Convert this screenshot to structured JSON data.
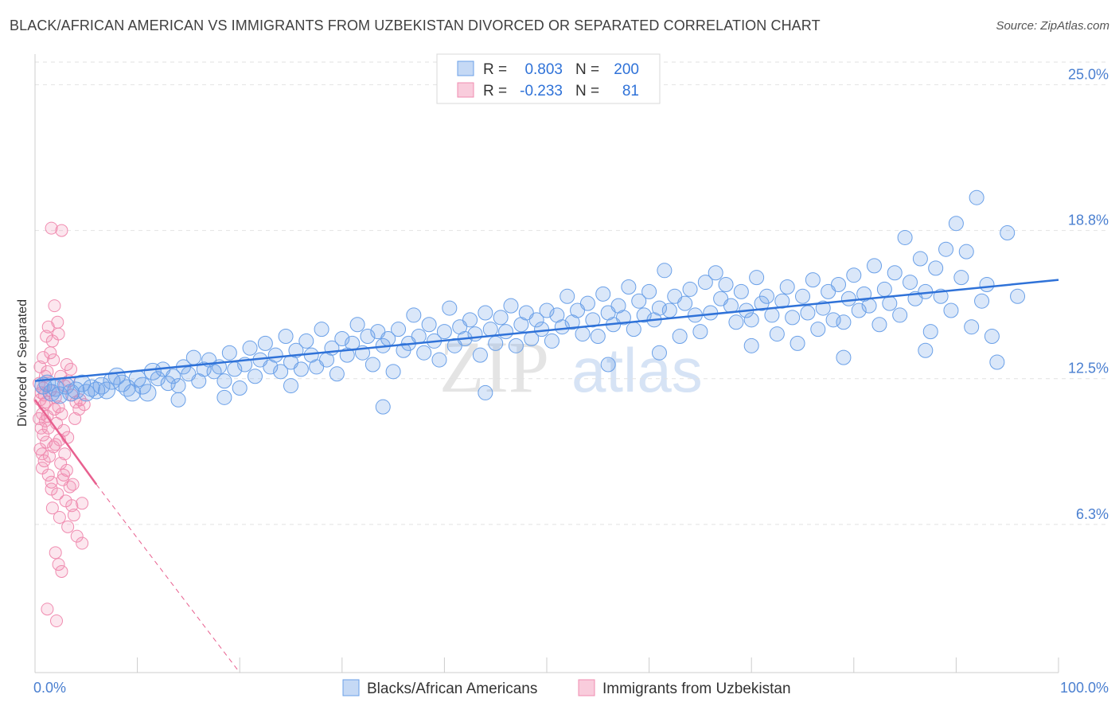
{
  "title": "BLACK/AFRICAN AMERICAN VS IMMIGRANTS FROM UZBEKISTAN DIVORCED OR SEPARATED CORRELATION CHART",
  "source": "Source: ZipAtlas.com",
  "watermark": {
    "zip": "ZIP",
    "atlas": "atlas"
  },
  "colors": {
    "blue": "#6aa0e8",
    "blue_line": "#2f72d8",
    "pink": "#f08cb0",
    "pink_line": "#e8608f",
    "tick": "#4a7fd0"
  },
  "stats_legend": [
    {
      "r_label": "R =",
      "r_value": "0.803",
      "n_label": "N =",
      "n_value": "200"
    },
    {
      "r_label": "R =",
      "r_value": "-0.233",
      "n_label": "N =",
      "n_value": "81"
    }
  ],
  "chart_data": {
    "type": "scatter",
    "title": "BLACK/AFRICAN AMERICAN VS IMMIGRANTS FROM UZBEKISTAN DIVORCED OR SEPARATED CORRELATION CHART",
    "xlabel": "",
    "ylabel": "Divorced or Separated",
    "xlim": [
      0,
      100
    ],
    "ylim": [
      0,
      26.3
    ],
    "x_ticks": [
      {
        "value": 0,
        "label": "0.0%"
      },
      {
        "value": 100,
        "label": "100.0%"
      }
    ],
    "y_ticks": [
      {
        "value": 6.3,
        "label": "6.3%"
      },
      {
        "value": 12.5,
        "label": "12.5%"
      },
      {
        "value": 18.8,
        "label": "18.8%"
      },
      {
        "value": 25.0,
        "label": "25.0%"
      }
    ],
    "grid": true,
    "legend_position": "bottom-center",
    "series": [
      {
        "name": "Blacks/African Americans",
        "color": "#6aa0e8",
        "trend": {
          "x": [
            0,
            100
          ],
          "y": [
            12.4,
            16.7
          ]
        },
        "points": [
          [
            0.8,
            12.2
          ],
          [
            1.2,
            12.3
          ],
          [
            1.6,
            11.9
          ],
          [
            2.0,
            12.1
          ],
          [
            2.4,
            11.8
          ],
          [
            3.0,
            12.2
          ],
          [
            3.5,
            11.9
          ],
          [
            4.0,
            12.0
          ],
          [
            4.6,
            12.3
          ],
          [
            5.0,
            11.9
          ],
          [
            5.5,
            12.1
          ],
          [
            6.0,
            12.0
          ],
          [
            6.5,
            12.2
          ],
          [
            7.0,
            12.0
          ],
          [
            7.5,
            12.4
          ],
          [
            8.0,
            12.6
          ],
          [
            8.5,
            12.3
          ],
          [
            9.0,
            12.1
          ],
          [
            9.5,
            11.9
          ],
          [
            10.0,
            12.5
          ],
          [
            10.5,
            12.2
          ],
          [
            11.0,
            11.9
          ],
          [
            11.5,
            12.8
          ],
          [
            12.0,
            12.5
          ],
          [
            12.5,
            12.9
          ],
          [
            13.0,
            12.3
          ],
          [
            13.5,
            12.6
          ],
          [
            14.0,
            12.2
          ],
          [
            14.5,
            13.0
          ],
          [
            15.0,
            12.7
          ],
          [
            15.5,
            13.4
          ],
          [
            16.0,
            12.4
          ],
          [
            16.5,
            12.9
          ],
          [
            17.0,
            13.3
          ],
          [
            17.5,
            12.8
          ],
          [
            18.0,
            13.0
          ],
          [
            18.5,
            12.4
          ],
          [
            19.0,
            13.6
          ],
          [
            19.5,
            12.9
          ],
          [
            20.0,
            12.1
          ],
          [
            20.5,
            13.1
          ],
          [
            21.0,
            13.8
          ],
          [
            21.5,
            12.6
          ],
          [
            22.0,
            13.3
          ],
          [
            22.5,
            14.0
          ],
          [
            23.0,
            13.0
          ],
          [
            23.5,
            13.5
          ],
          [
            24.0,
            12.8
          ],
          [
            24.5,
            14.3
          ],
          [
            25.0,
            13.2
          ],
          [
            25.5,
            13.7
          ],
          [
            26.0,
            12.9
          ],
          [
            26.5,
            14.1
          ],
          [
            27.0,
            13.5
          ],
          [
            27.5,
            13.0
          ],
          [
            28.0,
            14.6
          ],
          [
            28.5,
            13.3
          ],
          [
            29.0,
            13.8
          ],
          [
            29.5,
            12.7
          ],
          [
            30.0,
            14.2
          ],
          [
            30.5,
            13.5
          ],
          [
            31.0,
            14.0
          ],
          [
            31.5,
            14.8
          ],
          [
            32.0,
            13.6
          ],
          [
            32.5,
            14.3
          ],
          [
            33.0,
            13.1
          ],
          [
            33.5,
            14.5
          ],
          [
            34.0,
            13.9
          ],
          [
            34.5,
            14.2
          ],
          [
            35.0,
            12.8
          ],
          [
            35.5,
            14.6
          ],
          [
            36.0,
            13.7
          ],
          [
            36.5,
            14.0
          ],
          [
            37.0,
            15.2
          ],
          [
            37.5,
            14.3
          ],
          [
            38.0,
            13.6
          ],
          [
            38.5,
            14.8
          ],
          [
            39.0,
            14.1
          ],
          [
            39.5,
            13.3
          ],
          [
            40.0,
            14.5
          ],
          [
            40.5,
            15.5
          ],
          [
            41.0,
            13.9
          ],
          [
            41.5,
            14.7
          ],
          [
            42.0,
            14.2
          ],
          [
            42.5,
            15.0
          ],
          [
            43.0,
            14.4
          ],
          [
            43.5,
            13.5
          ],
          [
            44.0,
            15.3
          ],
          [
            44.5,
            14.6
          ],
          [
            45.0,
            14.0
          ],
          [
            45.5,
            15.1
          ],
          [
            46.0,
            14.5
          ],
          [
            46.5,
            15.6
          ],
          [
            47.0,
            13.9
          ],
          [
            47.5,
            14.8
          ],
          [
            48.0,
            15.3
          ],
          [
            48.5,
            14.2
          ],
          [
            49.0,
            15.0
          ],
          [
            49.5,
            14.6
          ],
          [
            50.0,
            15.4
          ],
          [
            50.5,
            14.1
          ],
          [
            51.0,
            15.2
          ],
          [
            51.5,
            14.7
          ],
          [
            52.0,
            16.0
          ],
          [
            52.5,
            14.9
          ],
          [
            53.0,
            15.4
          ],
          [
            53.5,
            14.4
          ],
          [
            54.0,
            15.7
          ],
          [
            54.5,
            15.0
          ],
          [
            55.0,
            14.3
          ],
          [
            55.5,
            16.1
          ],
          [
            56.0,
            15.3
          ],
          [
            56.5,
            14.8
          ],
          [
            57.0,
            15.6
          ],
          [
            57.5,
            15.1
          ],
          [
            58.0,
            16.4
          ],
          [
            58.5,
            14.6
          ],
          [
            59.0,
            15.8
          ],
          [
            59.5,
            15.2
          ],
          [
            60.0,
            16.2
          ],
          [
            60.5,
            15.0
          ],
          [
            61.0,
            15.5
          ],
          [
            61.5,
            17.1
          ],
          [
            62.0,
            15.4
          ],
          [
            62.5,
            16.0
          ],
          [
            63.0,
            14.3
          ],
          [
            63.5,
            15.7
          ],
          [
            64.0,
            16.3
          ],
          [
            64.5,
            15.2
          ],
          [
            65.0,
            14.5
          ],
          [
            65.5,
            16.6
          ],
          [
            66.0,
            15.3
          ],
          [
            66.5,
            17.0
          ],
          [
            67.0,
            15.9
          ],
          [
            67.5,
            16.5
          ],
          [
            68.0,
            15.6
          ],
          [
            68.5,
            14.9
          ],
          [
            69.0,
            16.2
          ],
          [
            69.5,
            15.4
          ],
          [
            70.0,
            15.0
          ],
          [
            70.5,
            16.8
          ],
          [
            71.0,
            15.7
          ],
          [
            71.5,
            16.0
          ],
          [
            72.0,
            15.2
          ],
          [
            72.5,
            14.4
          ],
          [
            73.0,
            15.8
          ],
          [
            73.5,
            16.4
          ],
          [
            74.0,
            15.1
          ],
          [
            74.5,
            14.0
          ],
          [
            75.0,
            16.0
          ],
          [
            75.5,
            15.3
          ],
          [
            76.0,
            16.7
          ],
          [
            76.5,
            14.6
          ],
          [
            77.0,
            15.5
          ],
          [
            77.5,
            16.2
          ],
          [
            78.0,
            15.0
          ],
          [
            78.5,
            16.5
          ],
          [
            79.0,
            14.9
          ],
          [
            79.5,
            15.9
          ],
          [
            80.0,
            16.9
          ],
          [
            80.5,
            15.4
          ],
          [
            81.0,
            16.1
          ],
          [
            81.5,
            15.6
          ],
          [
            82.0,
            17.3
          ],
          [
            82.5,
            14.8
          ],
          [
            83.0,
            16.3
          ],
          [
            83.5,
            15.7
          ],
          [
            84.0,
            17.0
          ],
          [
            84.5,
            15.2
          ],
          [
            85.0,
            18.5
          ],
          [
            85.5,
            16.6
          ],
          [
            86.0,
            15.9
          ],
          [
            86.5,
            17.6
          ],
          [
            87.0,
            16.2
          ],
          [
            87.5,
            14.5
          ],
          [
            88.0,
            17.2
          ],
          [
            88.5,
            16.0
          ],
          [
            89.0,
            18.0
          ],
          [
            89.5,
            15.4
          ],
          [
            90.0,
            19.1
          ],
          [
            90.5,
            16.8
          ],
          [
            91.0,
            17.9
          ],
          [
            91.5,
            14.7
          ],
          [
            92.0,
            20.2
          ],
          [
            92.5,
            15.8
          ],
          [
            93.0,
            16.5
          ],
          [
            93.5,
            14.3
          ],
          [
            94.0,
            13.2
          ],
          [
            95.0,
            18.7
          ],
          [
            96.0,
            16.0
          ],
          [
            34.0,
            11.3
          ],
          [
            18.5,
            11.7
          ],
          [
            14.0,
            11.6
          ],
          [
            25.0,
            12.2
          ],
          [
            44.0,
            11.9
          ],
          [
            56.0,
            13.1
          ],
          [
            61.0,
            13.6
          ],
          [
            70.0,
            13.9
          ],
          [
            79.0,
            13.4
          ],
          [
            87.0,
            13.7
          ]
        ]
      },
      {
        "name": "Immigrants from Uzbekistan",
        "color": "#f08cb0",
        "trend": {
          "x": [
            0,
            6
          ],
          "y": [
            11.6,
            8.0
          ],
          "dashed_extension": {
            "x": [
              6,
              20
            ],
            "y": [
              8.0,
              0.0
            ]
          }
        },
        "points": [
          [
            0.4,
            12.3
          ],
          [
            0.6,
            11.9
          ],
          [
            0.8,
            12.1
          ],
          [
            0.5,
            11.6
          ],
          [
            0.9,
            11.4
          ],
          [
            0.7,
            11.0
          ],
          [
            1.0,
            10.7
          ],
          [
            0.6,
            10.4
          ],
          [
            1.2,
            10.9
          ],
          [
            0.8,
            10.1
          ],
          [
            1.1,
            9.8
          ],
          [
            0.5,
            9.5
          ],
          [
            1.4,
            9.2
          ],
          [
            0.9,
            9.0
          ],
          [
            0.7,
            8.7
          ],
          [
            1.3,
            8.4
          ],
          [
            1.6,
            8.1
          ],
          [
            1.0,
            12.6
          ],
          [
            1.2,
            12.8
          ],
          [
            0.5,
            13.0
          ],
          [
            0.8,
            13.4
          ],
          [
            1.5,
            13.6
          ],
          [
            1.1,
            14.3
          ],
          [
            1.7,
            14.1
          ],
          [
            1.3,
            14.7
          ],
          [
            2.2,
            14.9
          ],
          [
            1.9,
            15.6
          ],
          [
            1.6,
            18.9
          ],
          [
            2.6,
            18.8
          ],
          [
            2.0,
            11.7
          ],
          [
            2.3,
            11.3
          ],
          [
            2.6,
            11.0
          ],
          [
            2.1,
            10.6
          ],
          [
            2.8,
            10.3
          ],
          [
            2.4,
            9.9
          ],
          [
            1.8,
            9.6
          ],
          [
            2.9,
            9.3
          ],
          [
            2.5,
            8.9
          ],
          [
            3.1,
            8.6
          ],
          [
            2.7,
            8.2
          ],
          [
            3.4,
            7.9
          ],
          [
            2.2,
            7.6
          ],
          [
            3.0,
            7.3
          ],
          [
            1.7,
            7.0
          ],
          [
            3.8,
            6.7
          ],
          [
            4.6,
            7.2
          ],
          [
            2.4,
            6.6
          ],
          [
            3.2,
            6.2
          ],
          [
            4.1,
            5.8
          ],
          [
            4.6,
            5.5
          ],
          [
            2.0,
            5.1
          ],
          [
            2.3,
            4.6
          ],
          [
            2.6,
            4.3
          ],
          [
            1.2,
            2.7
          ],
          [
            2.1,
            2.2
          ],
          [
            3.3,
            12.4
          ],
          [
            3.6,
            11.8
          ],
          [
            4.0,
            11.5
          ],
          [
            4.3,
            11.2
          ],
          [
            3.9,
            10.8
          ],
          [
            3.5,
            12.9
          ],
          [
            3.1,
            13.1
          ],
          [
            4.4,
            11.6
          ],
          [
            2.9,
            12.2
          ],
          [
            1.5,
            12.0
          ],
          [
            0.9,
            11.8
          ],
          [
            1.9,
            11.2
          ],
          [
            1.3,
            10.4
          ],
          [
            0.7,
            9.3
          ],
          [
            2.0,
            9.7
          ],
          [
            2.8,
            8.4
          ],
          [
            3.7,
            8.0
          ],
          [
            1.6,
            7.8
          ],
          [
            0.4,
            10.8
          ],
          [
            1.1,
            11.5
          ],
          [
            2.5,
            12.6
          ],
          [
            3.2,
            10.0
          ],
          [
            1.8,
            13.3
          ],
          [
            4.8,
            11.4
          ],
          [
            2.3,
            14.4
          ],
          [
            3.6,
            7.1
          ]
        ]
      }
    ]
  },
  "legend": [
    {
      "label": "Blacks/African Americans",
      "color": "#6aa0e8"
    },
    {
      "label": "Immigrants from Uzbekistan",
      "color": "#f08cb0"
    }
  ]
}
